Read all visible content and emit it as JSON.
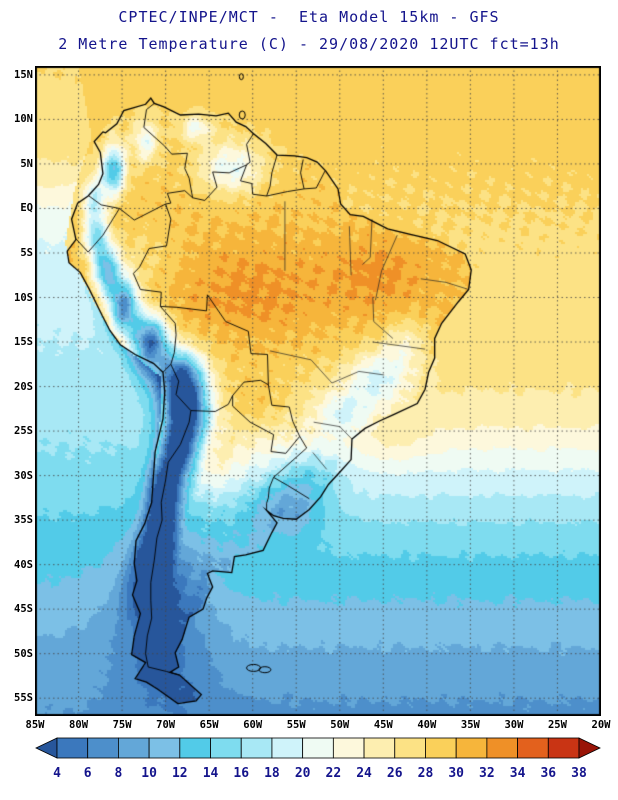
{
  "header": {
    "line1": "CPTEC/INPE/MCT -  Eta Model 15km - GFS",
    "line2": "2 Metre Temperature (C) - 29/08/2020 12UTC fct=13h",
    "title_color": "#14148c"
  },
  "map": {
    "lat_ticks": [
      "15N",
      "10N",
      "5N",
      "EQ",
      "5S",
      "10S",
      "15S",
      "20S",
      "25S",
      "30S",
      "35S",
      "40S",
      "45S",
      "50S",
      "55S"
    ],
    "lon_ticks": [
      "85W",
      "80W",
      "75W",
      "70W",
      "65W",
      "60W",
      "55W",
      "50W",
      "45W",
      "40W",
      "35W",
      "30W",
      "25W",
      "20W"
    ],
    "grid_style": "dotted",
    "frame_color": "#000000",
    "axis_label_color": "#000000"
  },
  "colorbar": {
    "tick_labels": [
      "4",
      "6",
      "8",
      "10",
      "12",
      "14",
      "16",
      "18",
      "20",
      "22",
      "24",
      "26",
      "28",
      "30",
      "32",
      "34",
      "36",
      "38"
    ],
    "segment_colors": [
      "#27569b",
      "#3b78bd",
      "#4d8fcb",
      "#63a7d8",
      "#7cc0e6",
      "#52cbe8",
      "#7edcef",
      "#a8e8f5",
      "#cff3fa",
      "#effbf3",
      "#fdf8dc",
      "#fdeeb0",
      "#fce285",
      "#fad05a",
      "#f6b53b",
      "#ef9027",
      "#e3611d",
      "#c93414",
      "#991407"
    ],
    "label_color": "#14148c"
  },
  "chart_data": {
    "type": "heatmap",
    "title": "2 Metre Temperature (C)",
    "source": "CPTEC/INPE/MCT",
    "model": "Eta Model 15km - GFS",
    "valid_time": "29/08/2020 12UTC fct=13h",
    "units": "C",
    "lon_domain": [
      "85W",
      "20W"
    ],
    "lat_domain": [
      "55S",
      "15N"
    ],
    "scale_values": [
      4,
      6,
      8,
      10,
      12,
      14,
      16,
      18,
      20,
      22,
      24,
      26,
      28,
      30,
      32,
      34,
      36,
      38
    ],
    "scale_colors": [
      "#27569b",
      "#3b78bd",
      "#4d8fcb",
      "#63a7d8",
      "#7cc0e6",
      "#52cbe8",
      "#7edcef",
      "#a8e8f5",
      "#cff3fa",
      "#effbf3",
      "#fdf8dc",
      "#fdeeb0",
      "#fce285",
      "#fad05a",
      "#f6b53b",
      "#ef9027",
      "#e3611d",
      "#c93414",
      "#991407"
    ],
    "features": [
      "28-32 C over central and northern Brazil and the tropical Atlantic",
      "Below 4-8 C along the Andes cordillera from Ecuador to Patagonia",
      "4-10 C over Patagonia and the far southern oceans",
      "8-14 C cold pocket over Uruguay and the Rio de la Plata",
      "18-22 C cool patches over the southeast Brazil highlands",
      "16-22 C Pacific waters off Peru and northern Chile"
    ]
  }
}
